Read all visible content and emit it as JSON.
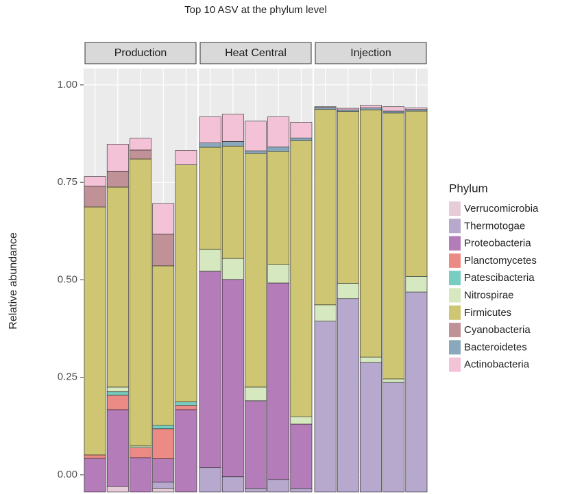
{
  "chart_data": {
    "type": "stacked_bar",
    "title": "Top 10 ASV at the phylum level",
    "y_label": "Relative abundance",
    "legend_title": "Phylum",
    "facets": [
      "Production",
      "Heat Central",
      "Injection"
    ],
    "categories": [
      null,
      null,
      null,
      null,
      null,
      null,
      null,
      null,
      null,
      null,
      null,
      null,
      null,
      null,
      null
    ],
    "ylim": [
      -0.044,
      1.042
    ],
    "yticks": [
      {
        "value": 0,
        "label": "0.00"
      },
      {
        "value": 0.25,
        "label": "0.25"
      },
      {
        "value": 0.5,
        "label": "0.50"
      },
      {
        "value": 0.75,
        "label": "0.75"
      },
      {
        "value": 1,
        "label": "1.00"
      }
    ],
    "grid": true,
    "series": [
      {
        "name": "Verrucomicrobia",
        "color": "#e6ccd8",
        "values": [
          0,
          0.014,
          0,
          0.009,
          0,
          0,
          0,
          0,
          0,
          0,
          0,
          0,
          0,
          0,
          0
        ]
      },
      {
        "name": "Thermotogae",
        "color": "#b6a9cd",
        "values": [
          0,
          0,
          0,
          0.016,
          0,
          0.062,
          0.039,
          0.009,
          0.032,
          0.009,
          0.438,
          0.496,
          0.332,
          0.281,
          0.513
        ]
      },
      {
        "name": "Proteobacteria",
        "color": "#b47cb8",
        "values": [
          0.086,
          0.197,
          0.088,
          0.06,
          0.211,
          0.504,
          0.506,
          0.225,
          0.504,
          0.165,
          0,
          0,
          0,
          0,
          0
        ]
      },
      {
        "name": "Planctomycetes",
        "color": "#ec8a85",
        "values": [
          0.009,
          0.037,
          0.025,
          0.077,
          0.011,
          0,
          0,
          0,
          0,
          0,
          0,
          0,
          0,
          0,
          0
        ]
      },
      {
        "name": "Patescibacteria",
        "color": "#76cdc0",
        "values": [
          0,
          0.009,
          0,
          0.009,
          0.009,
          0,
          0,
          0,
          0,
          0,
          0,
          0,
          0,
          0,
          0
        ]
      },
      {
        "name": "Nitrospirae",
        "color": "#d5e8bf",
        "values": [
          0,
          0.012,
          0.005,
          0,
          0,
          0.056,
          0.054,
          0.035,
          0.047,
          0.019,
          0.042,
          0.039,
          0.014,
          0.009,
          0.04
        ]
      },
      {
        "name": "Firmicutes",
        "color": "#cfc673",
        "values": [
          0.636,
          0.513,
          0.736,
          0.409,
          0.608,
          0.262,
          0.288,
          0.599,
          0.29,
          0.708,
          0.501,
          0.441,
          0.634,
          0.682,
          0.424
        ]
      },
      {
        "name": "Cyanobacteria",
        "color": "#c09298",
        "values": [
          0.053,
          0.04,
          0.023,
          0.081,
          0,
          0,
          0,
          0,
          0,
          0,
          0,
          0,
          0,
          0,
          0
        ]
      },
      {
        "name": "Bacteroidetes",
        "color": "#8aa8bb",
        "values": [
          0,
          0,
          0,
          0,
          0,
          0.011,
          0.012,
          0.007,
          0.012,
          0.007,
          0.005,
          0.004,
          0.005,
          0.005,
          0.004
        ]
      },
      {
        "name": "Actinobacteria",
        "color": "#f4c2d6",
        "values": [
          0.025,
          0.07,
          0.03,
          0.079,
          0.037,
          0.067,
          0.07,
          0.076,
          0.077,
          0.04,
          0.002,
          0.004,
          0.007,
          0.011,
          0.004
        ]
      }
    ]
  }
}
